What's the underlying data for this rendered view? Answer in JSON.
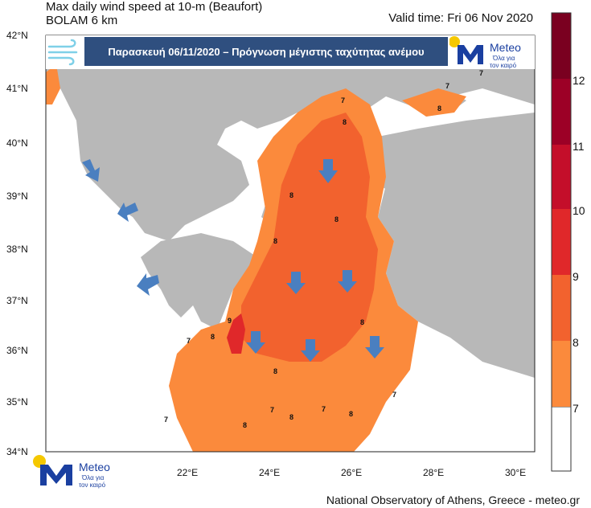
{
  "header": {
    "title_line1": "Max daily wind speed at 10-m (Beaufort)",
    "title_line2": "BOLAM 6 km",
    "valid_time": "Valid time: Fri 06 Nov 2020"
  },
  "banner": {
    "text": "Παρασκευή 06/11/2020 – Πρόγνωση μέγιστης ταχύτητας ανέμου"
  },
  "logo": {
    "brand": "Meteo",
    "tagline1": "Όλα για",
    "tagline2": "τον καιρό"
  },
  "axes": {
    "latitudes": [
      "42°N",
      "41°N",
      "40°N",
      "39°N",
      "38°N",
      "37°N",
      "36°N",
      "35°N",
      "34°N"
    ],
    "longitudes": [
      "22°E",
      "24°E",
      "26°E",
      "28°E",
      "30°E"
    ]
  },
  "colorbar": {
    "levels": [
      "7",
      "8",
      "9",
      "10",
      "11",
      "12"
    ],
    "colors": [
      "#ffffff",
      "#fb8a3c",
      "#f2622e",
      "#e0282a",
      "#c40e2a",
      "#9c0026"
    ]
  },
  "contour_labels": [
    "7",
    "8",
    "9"
  ],
  "footer": {
    "credit": "National Observatory of Athens, Greece - meteo.gr"
  },
  "style": {
    "land": "#b8b8b8",
    "sea": "#ffffff",
    "orange_light": "#fb8a3c",
    "orange_dark": "#f2622e",
    "red": "#e0282a",
    "arrow": "#4a7fc0"
  }
}
